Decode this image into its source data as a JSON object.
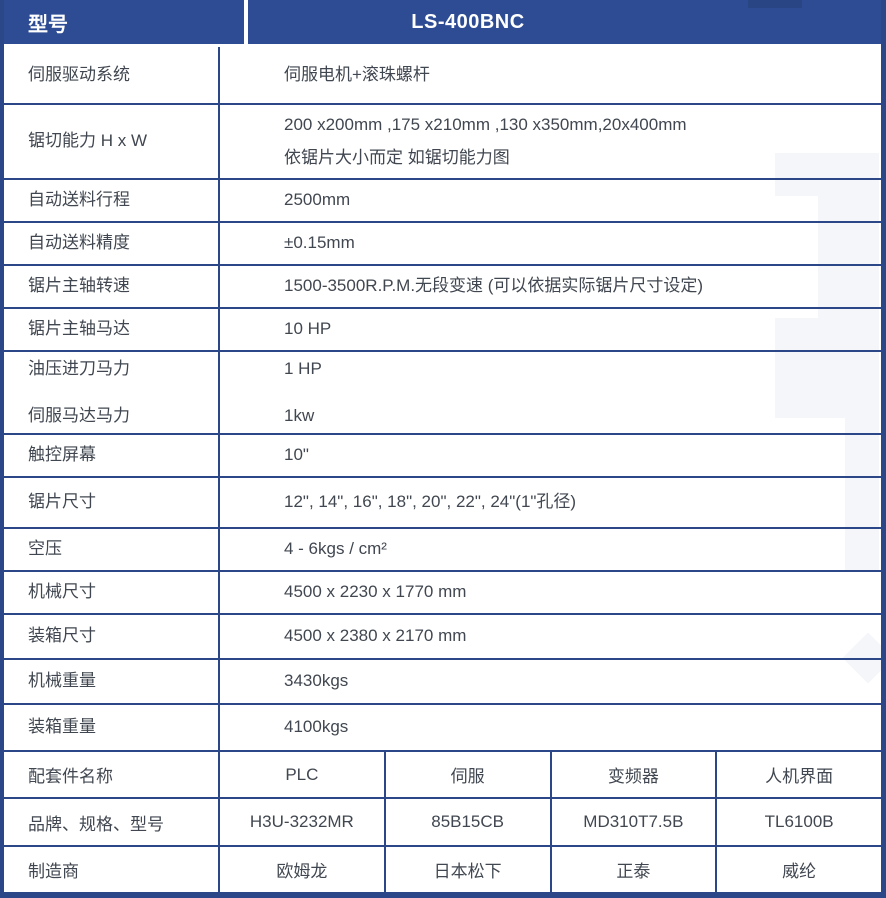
{
  "title_row": {
    "label": "型号",
    "model": "LS-400BNC"
  },
  "specs": [
    {
      "labels": [
        "伺服驱动系统"
      ],
      "values": [
        "伺服电机+滚珠螺杆"
      ]
    },
    {
      "labels": [
        "锯切能力  H x W"
      ],
      "values": [
        "200 x200mm ,175 x210mm ,130 x350mm,20x400mm",
        "依锯片大小而定 如锯切能力图"
      ]
    },
    {
      "labels": [
        "自动送料行程"
      ],
      "values": [
        "2500mm"
      ]
    },
    {
      "labels": [
        "自动送料精度"
      ],
      "values": [
        "±0.15mm"
      ]
    },
    {
      "labels": [
        "锯片主轴转速"
      ],
      "values": [
        "1500-3500R.P.M.无段变速 (可以依据实际锯片尺寸设定)"
      ]
    },
    {
      "labels": [
        "锯片主轴马达"
      ],
      "values": [
        "10 HP"
      ]
    },
    {
      "labels": [
        "油压进刀马力",
        "伺服马达马力"
      ],
      "values": [
        "1 HP",
        "1kw"
      ]
    },
    {
      "labels": [
        "触控屏幕"
      ],
      "values": [
        "10\""
      ]
    },
    {
      "labels": [
        "锯片尺寸"
      ],
      "values": [
        "12\", 14\", 16\", 18\", 20\", 22\", 24\"(1\"孔径)"
      ]
    },
    {
      "labels": [
        "空压"
      ],
      "values": [
        "4 - 6kgs / cm²"
      ]
    },
    {
      "labels": [
        "机械尺寸"
      ],
      "values": [
        "4500 x 2230 x 1770 mm"
      ]
    },
    {
      "labels": [
        "装箱尺寸"
      ],
      "values": [
        "4500 x 2380 x 2170 mm"
      ]
    },
    {
      "labels": [
        "机械重量"
      ],
      "values": [
        "3430kgs"
      ]
    },
    {
      "labels": [
        "装箱重量"
      ],
      "values": [
        "4100kgs"
      ]
    }
  ],
  "accessories": [
    {
      "label": "配套件名称",
      "cells": [
        "PLC",
        "伺服",
        "变频器",
        "人机界面"
      ]
    },
    {
      "label": "品牌、规格、型号",
      "cells": [
        "H3U-3232MR",
        "85B15CB",
        "MD310T7.5B",
        "TL6100B"
      ]
    },
    {
      "label": "制造商",
      "cells": [
        "欧姆龙",
        "日本松下",
        "正泰",
        "威纶"
      ]
    }
  ],
  "colors": {
    "header_bg": "#2e4c93",
    "grid": "#2b4787",
    "text": "#414750",
    "header_text": "#ffffff",
    "watermark": "#f4f6fa"
  }
}
